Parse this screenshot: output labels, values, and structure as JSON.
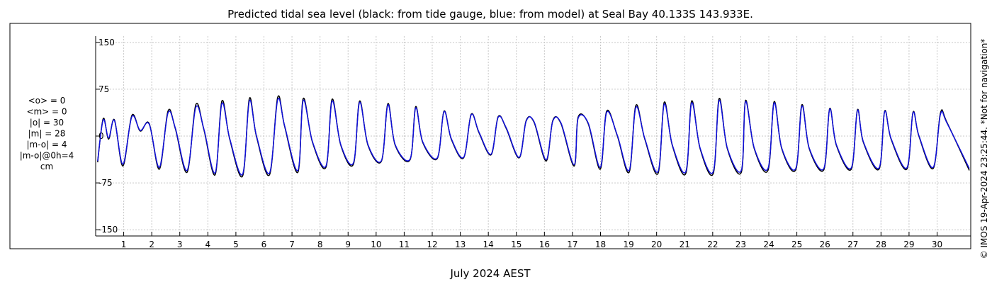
{
  "chart_data": {
    "type": "line",
    "title": "Predicted tidal sea level (black: from tide gauge, blue: from model) at Seal Bay 40.133S 143.933E.",
    "xlabel": "July 2024 AEST",
    "ylabel": "",
    "x_unit": "day of July 2024",
    "xlim": [
      0.0,
      31.2
    ],
    "ylim": [
      -160,
      160
    ],
    "y_ticks": [
      -150,
      -75,
      0,
      75,
      150
    ],
    "y_tick_labels": [
      "-150",
      "-75",
      "0",
      "75",
      "150"
    ],
    "x_ticks": [
      1,
      2,
      3,
      4,
      5,
      6,
      7,
      8,
      9,
      10,
      11,
      12,
      13,
      14,
      15,
      16,
      17,
      18,
      19,
      20,
      21,
      22,
      23,
      24,
      25,
      26,
      27,
      28,
      29,
      30
    ],
    "x_tick_labels": [
      "1",
      "2",
      "3",
      "4",
      "5",
      "6",
      "7",
      "8",
      "9",
      "10",
      "11",
      "12",
      "13",
      "14",
      "15",
      "16",
      "17",
      "18",
      "19",
      "20",
      "21",
      "22",
      "23",
      "24",
      "25",
      "26",
      "27",
      "28",
      "29",
      "30"
    ],
    "grid": true,
    "stats": [
      "<o> = 0",
      "<m> = 0",
      "|o| = 30",
      "|m| = 28",
      "|m-o| = 4",
      "|m-o|@0h=4",
      "cm"
    ],
    "series": [
      {
        "color": "#000000",
        "x": [
          0.07,
          0.27,
          0.46,
          0.67,
          0.97,
          1.29,
          1.59,
          1.91,
          2.27,
          2.58,
          2.84,
          3.26,
          3.57,
          3.86,
          4.26,
          4.5,
          4.78,
          5.24,
          5.48,
          5.73,
          6.2,
          6.49,
          6.74,
          7.21,
          7.4,
          7.73,
          8.21,
          8.43,
          8.74,
          9.19,
          9.41,
          9.71,
          10.19,
          10.42,
          10.68,
          11.21,
          11.41,
          11.66,
          12.18,
          12.42,
          12.68,
          13.12,
          13.39,
          13.67,
          14.1,
          14.35,
          14.64,
          15.1,
          15.35,
          15.63,
          16.06,
          16.3,
          16.59,
          17.06,
          17.2,
          17.56,
          17.99,
          18.22,
          18.6,
          19.02,
          19.26,
          19.58,
          20.05,
          20.27,
          20.56,
          21.04,
          21.25,
          21.55,
          22.02,
          22.23,
          22.52,
          23.02,
          23.17,
          23.48,
          23.97,
          24.19,
          24.46,
          24.96,
          25.18,
          25.44,
          25.96,
          26.17,
          26.41,
          26.94,
          27.16,
          27.37,
          27.93,
          28.13,
          28.36,
          28.92,
          29.14,
          29.35,
          29.86,
          30.12,
          30.35,
          31.15
        ],
        "y": [
          -42,
          28,
          -5,
          26,
          -48,
          33,
          8,
          20,
          -53,
          40,
          12,
          -58,
          50,
          10,
          -62,
          56,
          -5,
          -64,
          60,
          0,
          -62,
          62,
          15,
          -58,
          60,
          -10,
          -50,
          59,
          -15,
          -45,
          56,
          -15,
          -40,
          52,
          -15,
          -38,
          47,
          -10,
          -36,
          40,
          -5,
          -35,
          35,
          5,
          -30,
          31,
          12,
          -35,
          25,
          22,
          -40,
          25,
          20,
          -48,
          30,
          20,
          -53,
          40,
          0,
          -58,
          49,
          -5,
          -60,
          54,
          -15,
          -60,
          56,
          -20,
          -60,
          60,
          -20,
          -58,
          57,
          -20,
          -55,
          55,
          -20,
          -54,
          50,
          -20,
          -54,
          44,
          -15,
          -53,
          42,
          -10,
          -53,
          40,
          -5,
          -53,
          38,
          0,
          -52,
          37,
          22,
          -55
        ]
      },
      {
        "color": "#1010dd",
        "x": [
          0.07,
          0.27,
          0.46,
          0.67,
          0.97,
          1.29,
          1.59,
          1.91,
          2.27,
          2.58,
          2.84,
          3.26,
          3.57,
          3.86,
          4.26,
          4.5,
          4.78,
          5.24,
          5.48,
          5.73,
          6.2,
          6.49,
          6.74,
          7.21,
          7.4,
          7.73,
          8.21,
          8.43,
          8.74,
          9.19,
          9.41,
          9.71,
          10.19,
          10.42,
          10.68,
          11.21,
          11.41,
          11.66,
          12.18,
          12.42,
          12.68,
          13.12,
          13.39,
          13.67,
          14.1,
          14.35,
          14.64,
          15.1,
          15.35,
          15.63,
          16.06,
          16.3,
          16.59,
          17.06,
          17.2,
          17.56,
          17.99,
          18.22,
          18.6,
          19.02,
          19.26,
          19.58,
          20.05,
          20.27,
          20.56,
          21.04,
          21.25,
          21.55,
          22.02,
          22.23,
          22.52,
          23.02,
          23.17,
          23.48,
          23.97,
          24.19,
          24.46,
          24.96,
          25.18,
          25.44,
          25.96,
          26.17,
          26.41,
          26.94,
          27.16,
          27.37,
          27.93,
          28.13,
          28.36,
          28.92,
          29.14,
          29.35,
          29.86,
          30.12,
          30.35,
          31.15
        ],
        "y": [
          -40,
          26,
          -3,
          25,
          -45,
          31,
          9,
          19,
          -50,
          37,
          13,
          -55,
          46,
          11,
          -59,
          52,
          -4,
          -61,
          56,
          1,
          -59,
          58,
          16,
          -55,
          57,
          -9,
          -48,
          56,
          -14,
          -43,
          54,
          -14,
          -39,
          50,
          -14,
          -37,
          45,
          -9,
          -35,
          39,
          -4,
          -34,
          34,
          6,
          -29,
          30,
          13,
          -34,
          24,
          23,
          -38,
          24,
          21,
          -46,
          28,
          21,
          -50,
          38,
          1,
          -55,
          46,
          -4,
          -57,
          51,
          -14,
          -57,
          53,
          -19,
          -57,
          57,
          -19,
          -55,
          55,
          -19,
          -52,
          53,
          -19,
          -52,
          48,
          -19,
          -52,
          43,
          -14,
          -51,
          41,
          -9,
          -51,
          39,
          -4,
          -51,
          37,
          1,
          -50,
          35,
          21,
          -52
        ]
      }
    ]
  },
  "sidebar_text": "© IMOS 19-Apr-2024 23:25:44. *Not for navigation*"
}
